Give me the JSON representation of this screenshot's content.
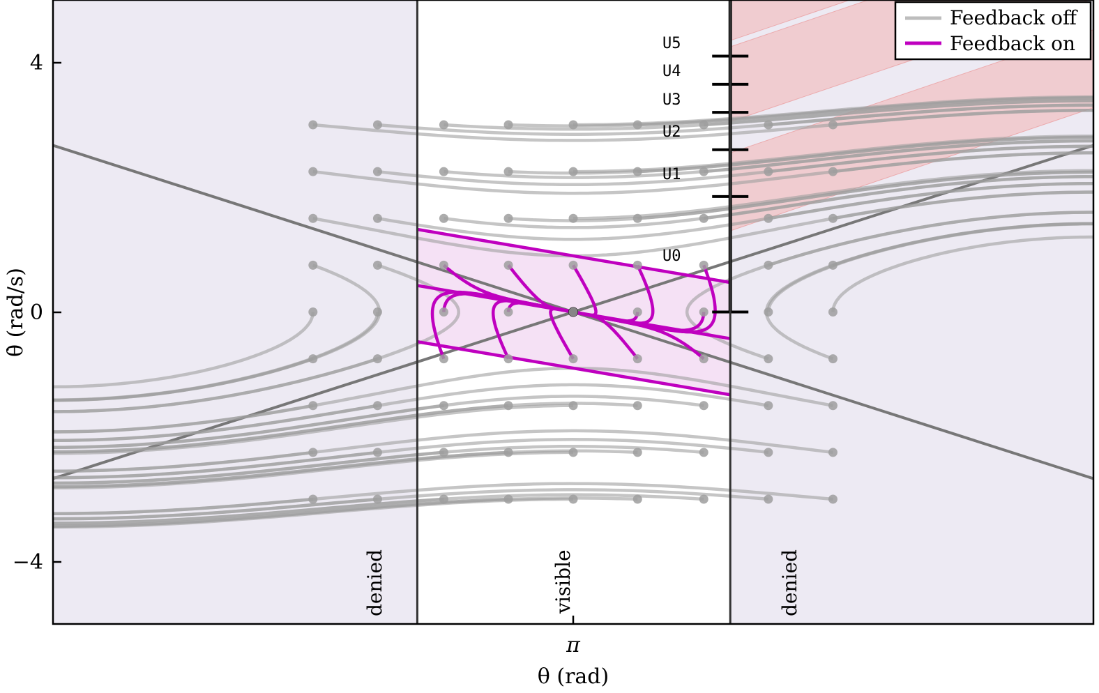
{
  "chart_data": {
    "type": "line",
    "xlabel": "θ (rad)",
    "ylabel": "θ̇ (rad/s)",
    "xlim": [
      0.0,
      6.283
    ],
    "ylim": [
      -5.0,
      5.0
    ],
    "xticks": [
      {
        "value": 3.1416,
        "label": "π"
      }
    ],
    "yticks": [
      {
        "value": 4,
        "label": "4"
      },
      {
        "value": 0,
        "label": "0"
      },
      {
        "value": -4,
        "label": "−4"
      }
    ],
    "grid": false,
    "legend_position": "top-right",
    "legend": [
      {
        "label": "Feedback off",
        "color": "#bdbdbd"
      },
      {
        "label": "Feedback on",
        "color": "#bf00bf"
      }
    ],
    "regions": [
      {
        "label": "denied",
        "x_range": [
          0.0,
          2.2
        ]
      },
      {
        "label": "visible",
        "x_range": [
          2.2,
          4.09
        ]
      },
      {
        "label": "denied",
        "x_range": [
          4.09,
          6.283
        ]
      }
    ],
    "equilibrium": {
      "x": 3.1416,
      "y": 0.0
    },
    "u_levels": [
      {
        "label": "U0",
        "y": 0.0
      },
      {
        "label": "U1",
        "y": 1.85
      },
      {
        "label": "U2",
        "y": 2.6
      },
      {
        "label": "U3",
        "y": 3.2
      },
      {
        "label": "U4",
        "y": 3.65
      },
      {
        "label": "U5",
        "y": 4.1
      }
    ],
    "u_marker_x": 4.09,
    "separatrices": [
      {
        "slope": -0.85,
        "intercept_x": 3.1416
      },
      {
        "slope": 0.85,
        "intercept_x": 3.1416
      }
    ],
    "start_x": [
      1.57,
      1.96,
      2.36,
      2.75,
      3.1416,
      3.53,
      3.93,
      4.32,
      4.71
    ],
    "start_y": [
      3.0,
      2.25,
      1.5,
      0.75,
      0.0,
      -0.75,
      -1.5,
      -2.25,
      -3.0
    ],
    "feedback_on_band": {
      "x_range": [
        2.2,
        4.09
      ],
      "center_slope": -0.45,
      "half_width": 0.9
    }
  },
  "labels": {
    "region_left": "denied",
    "region_center": "visible",
    "region_right": "denied",
    "xlabel": "θ (rad)",
    "ylabel": "θ̇ (rad/s)",
    "u0": "U0",
    "u1": "U1",
    "u2": "U2",
    "u3": "U3",
    "u4": "U4",
    "u5": "U5",
    "legend_off": "Feedback off",
    "legend_on": "Feedback on",
    "xtick_pi": "π",
    "ytick_4": "4",
    "ytick_0": "0",
    "ytick_m4": "−4"
  },
  "colors": {
    "denied_fill": "#edeaf3",
    "feedback_off": "#9e9e9e",
    "feedback_on": "#bf00bf",
    "feedback_on_band": "#f3dcf3",
    "separatrix": "#777777",
    "unstable_band": "#f2b3b3"
  }
}
